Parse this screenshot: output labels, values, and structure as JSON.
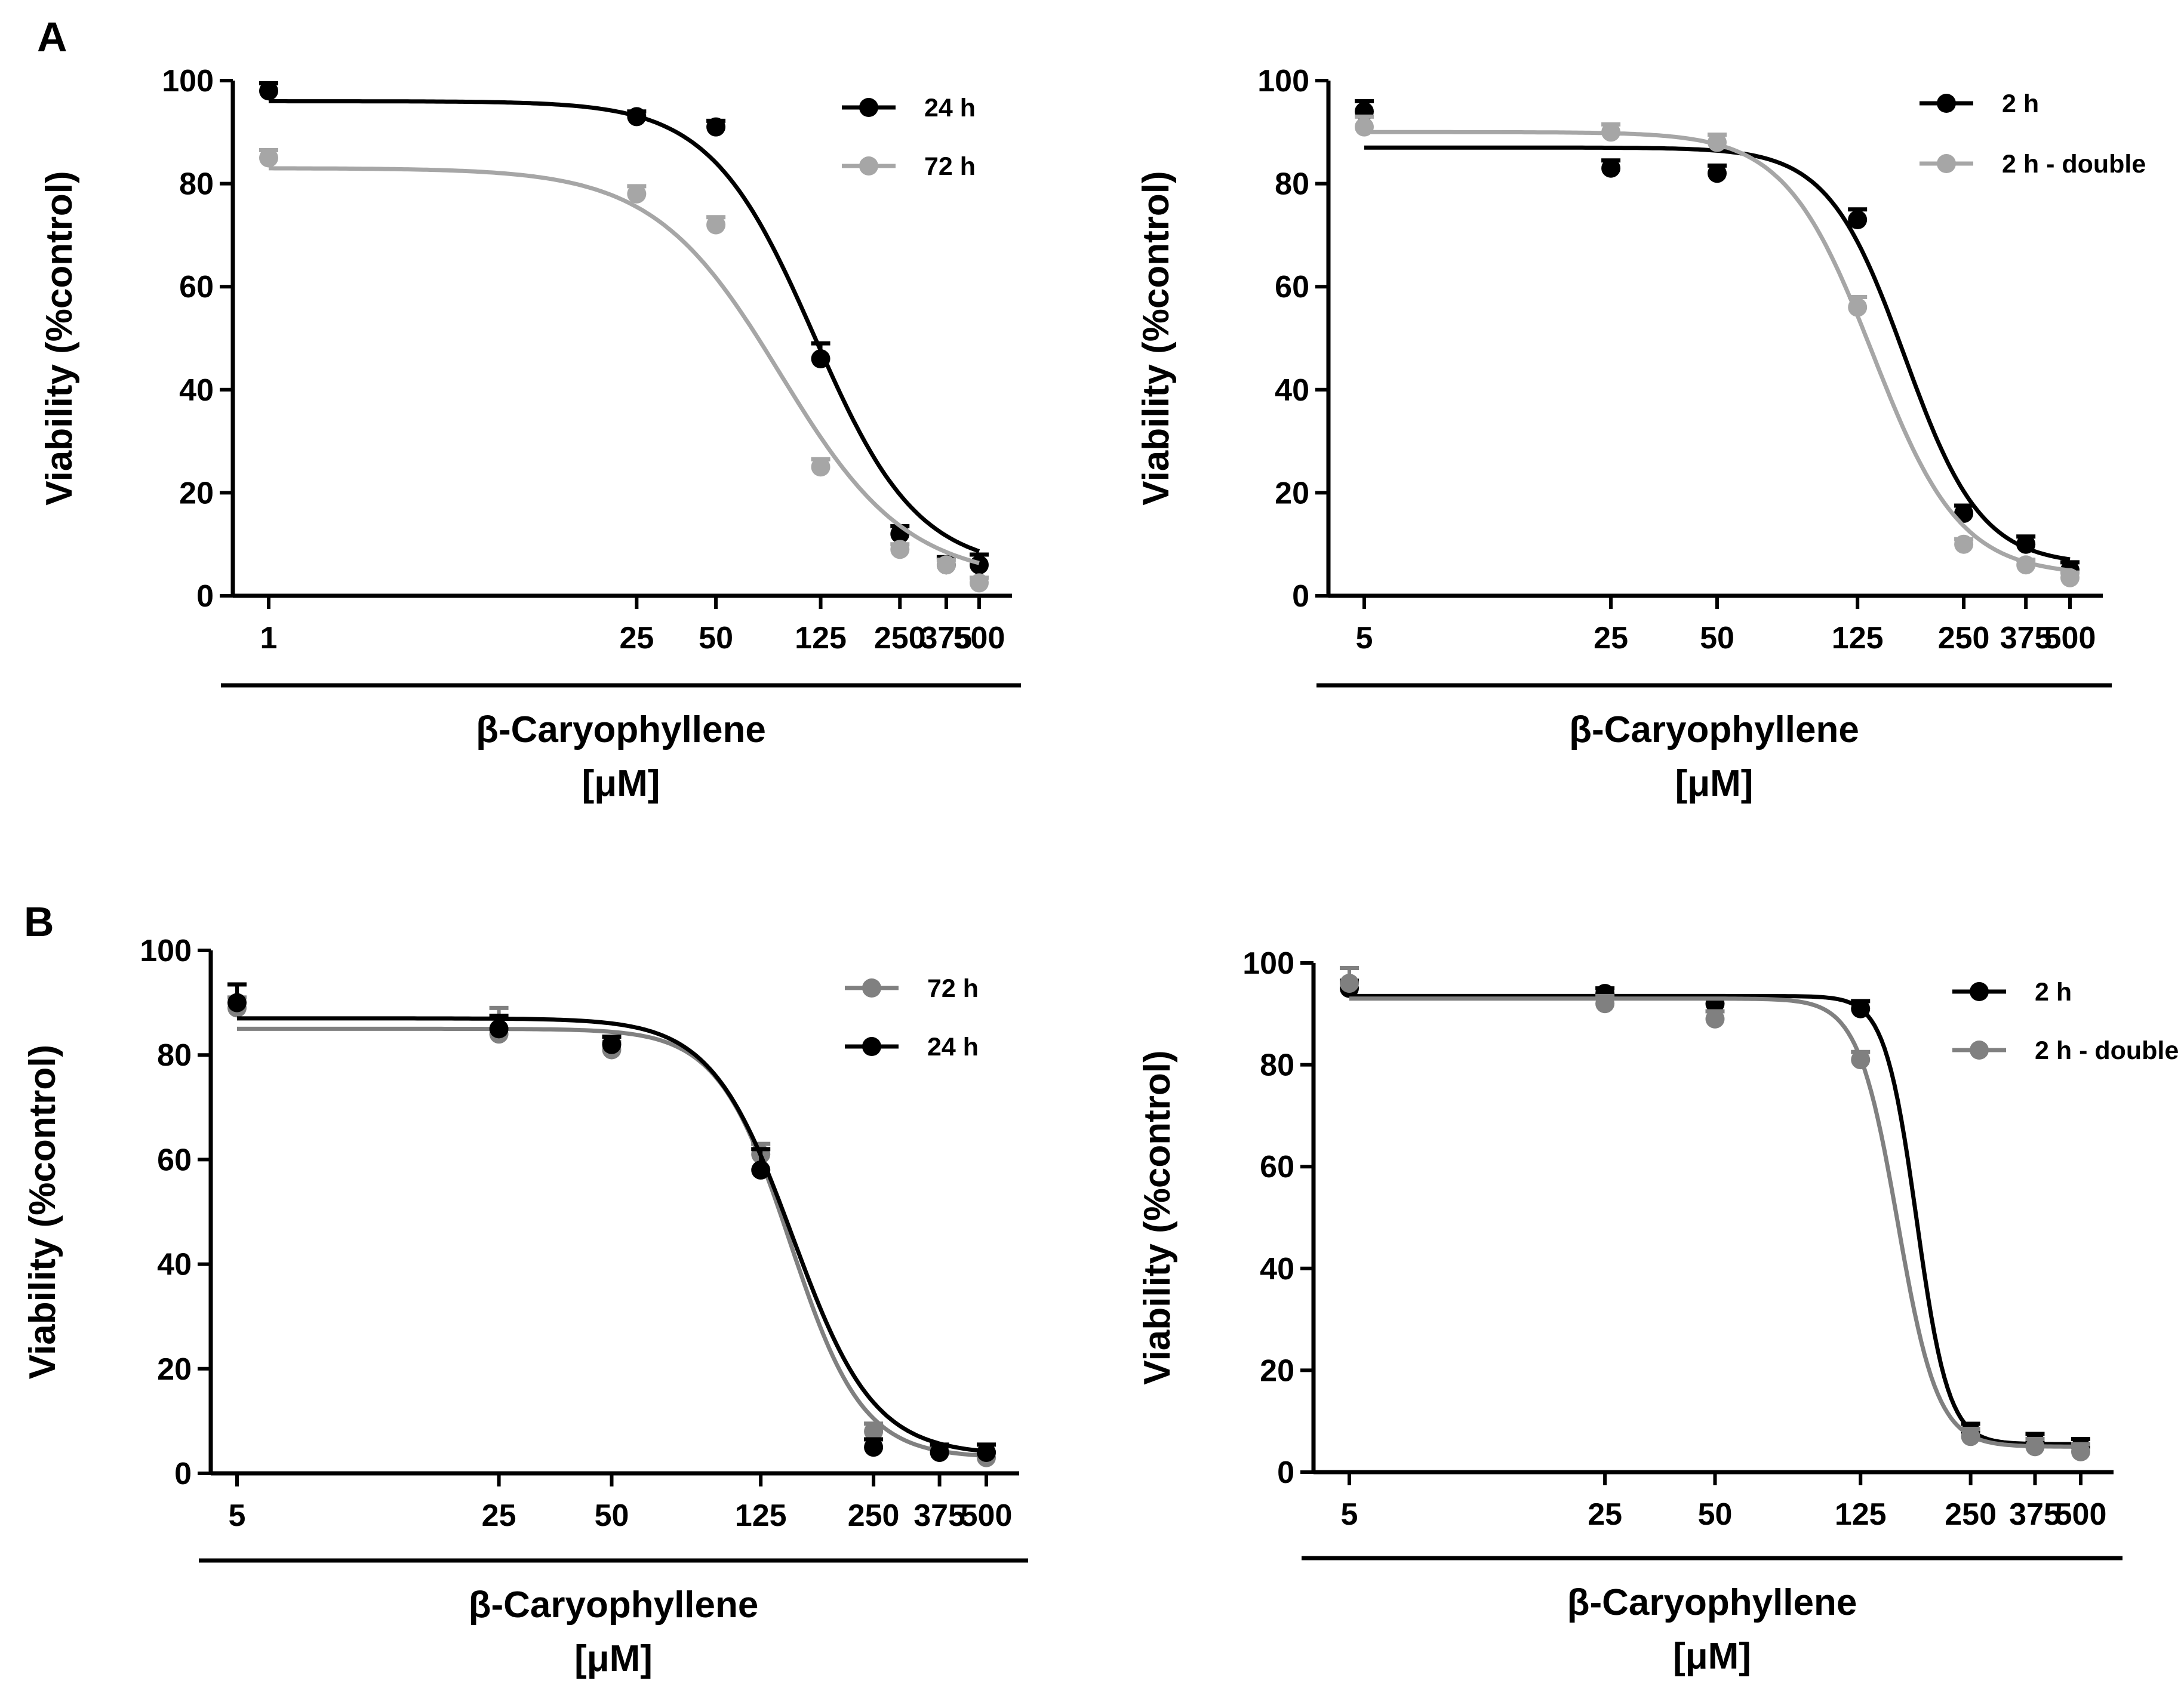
{
  "figure": {
    "panel_letters": [
      "A",
      "B"
    ]
  },
  "colors": {
    "black": "#000000",
    "light_gray": "#a6a6a6",
    "mid_gray": "#808080"
  },
  "chart_data": [
    {
      "type": "line",
      "panel": "A",
      "position": "left",
      "xlabel": "β-Caryophyllene",
      "xunit": "[μM]",
      "ylabel": "Viability (%control)",
      "ylim": [
        0,
        100
      ],
      "yticks": [
        "0",
        "20",
        "40",
        "60",
        "80",
        "100"
      ],
      "xscale": "log",
      "xticks": [
        1,
        25,
        50,
        125,
        250,
        375,
        500
      ],
      "xtick_labels": [
        "1",
        "25",
        "50",
        "125",
        "250",
        "375",
        "500"
      ],
      "series": [
        {
          "name": "24 h",
          "color": "#000000",
          "x": [
            1,
            25,
            50,
            125,
            250,
            375,
            500
          ],
          "values": [
            98,
            93,
            91,
            46,
            12,
            6,
            6
          ],
          "errors": [
            1.5,
            1,
            1.2,
            3,
            1.5,
            1.5,
            2
          ],
          "fit": {
            "top": 96,
            "bottom": 5,
            "ec50": 118,
            "hill": 2.2
          }
        },
        {
          "name": "72 h",
          "color": "#a6a6a6",
          "x": [
            1,
            25,
            50,
            125,
            250,
            375,
            500
          ],
          "values": [
            85,
            78,
            72,
            25,
            9,
            6,
            2.5
          ],
          "errors": [
            1.5,
            1.5,
            1.5,
            1.5,
            1,
            1,
            1
          ],
          "fit": {
            "top": 83,
            "bottom": 3,
            "ec50": 88,
            "hill": 1.8
          }
        }
      ],
      "legend": "top-right"
    },
    {
      "type": "line",
      "panel": "A",
      "position": "right",
      "xlabel": "β-Caryophyllene",
      "xunit": "[μM]",
      "ylabel": "Viability (%control)",
      "ylim": [
        0,
        100
      ],
      "yticks": [
        "0",
        "20",
        "40",
        "60",
        "80",
        "100"
      ],
      "xscale": "log",
      "xticks": [
        5,
        25,
        50,
        125,
        250,
        375,
        500
      ],
      "xtick_labels": [
        "5",
        "25",
        "50",
        "125",
        "250",
        "375",
        "500"
      ],
      "series": [
        {
          "name": "2 h",
          "color": "#000000",
          "x": [
            5,
            25,
            50,
            125,
            250,
            375,
            500
          ],
          "values": [
            94,
            83,
            82,
            73,
            16,
            10,
            5
          ],
          "errors": [
            2,
            1.5,
            1.5,
            2,
            1.5,
            1.5,
            1.5
          ],
          "fit": {
            "top": 87,
            "bottom": 6,
            "ec50": 170,
            "hill": 4
          }
        },
        {
          "name": "2 h - double",
          "color": "#a6a6a6",
          "x": [
            5,
            25,
            50,
            125,
            250,
            375,
            500
          ],
          "values": [
            91,
            90,
            88,
            56,
            10,
            6,
            3.5
          ],
          "errors": [
            2,
            1.5,
            1.5,
            2,
            1,
            1,
            1
          ],
          "fit": {
            "top": 90,
            "bottom": 4,
            "ec50": 138,
            "hill": 3.5
          }
        }
      ],
      "legend": "top-right"
    },
    {
      "type": "line",
      "panel": "B",
      "position": "left",
      "xlabel": "β-Caryophyllene",
      "xunit": "[μM]",
      "ylabel": "Viability (%control)",
      "ylim": [
        0,
        100
      ],
      "yticks": [
        "0",
        "20",
        "40",
        "60",
        "80",
        "100"
      ],
      "xscale": "log",
      "xticks": [
        5,
        25,
        50,
        125,
        250,
        375,
        500
      ],
      "xtick_labels": [
        "5",
        "25",
        "50",
        "125",
        "250",
        "375",
        "500"
      ],
      "series": [
        {
          "name": "72 h",
          "color": "#808080",
          "x": [
            5,
            25,
            50,
            125,
            250,
            375,
            500
          ],
          "values": [
            89,
            84,
            81,
            61,
            8,
            4,
            3
          ],
          "errors": [
            2,
            5,
            1.5,
            2,
            1.5,
            1,
            1
          ],
          "fit": {
            "top": 85,
            "bottom": 3,
            "ec50": 150,
            "hill": 4.5
          }
        },
        {
          "name": "24 h",
          "color": "#000000",
          "x": [
            5,
            25,
            50,
            125,
            250,
            375,
            500
          ],
          "values": [
            90,
            85,
            82,
            58,
            5,
            4,
            4
          ],
          "errors": [
            3.5,
            2.5,
            1.5,
            4,
            1.5,
            1.5,
            1.5
          ],
          "fit": {
            "top": 87,
            "bottom": 3.5,
            "ec50": 152,
            "hill": 4
          }
        }
      ],
      "legend": "top-right"
    },
    {
      "type": "line",
      "panel": "B",
      "position": "right",
      "xlabel": "β-Caryophyllene",
      "xunit": "[μM]",
      "ylabel": "Viability (%control)",
      "ylim": [
        0,
        100
      ],
      "yticks": [
        "0",
        "20",
        "40",
        "60",
        "80",
        "100"
      ],
      "xscale": "log",
      "xticks": [
        5,
        25,
        50,
        125,
        250,
        375,
        500
      ],
      "xtick_labels": [
        "5",
        "25",
        "50",
        "125",
        "250",
        "375",
        "500"
      ],
      "series": [
        {
          "name": "2 h",
          "color": "#000000",
          "x": [
            5,
            25,
            50,
            125,
            250,
            375,
            500
          ],
          "values": [
            95,
            94,
            92,
            91,
            8,
            6,
            5
          ],
          "errors": [
            1.5,
            1,
            1.5,
            1.5,
            1.5,
            1.5,
            1.5
          ],
          "fit": {
            "top": 93.5,
            "bottom": 5.5,
            "ec50": 178,
            "hill": 10
          }
        },
        {
          "name": "2 h - double",
          "color": "#808080",
          "x": [
            5,
            25,
            50,
            125,
            250,
            375,
            500
          ],
          "values": [
            96,
            92,
            89,
            81,
            7,
            5,
            4
          ],
          "errors": [
            3,
            1.5,
            1.5,
            1.5,
            1.5,
            1.5,
            1.5
          ],
          "fit": {
            "top": 93,
            "bottom": 5,
            "ec50": 158,
            "hill": 8
          }
        }
      ],
      "legend": "top-right"
    }
  ]
}
